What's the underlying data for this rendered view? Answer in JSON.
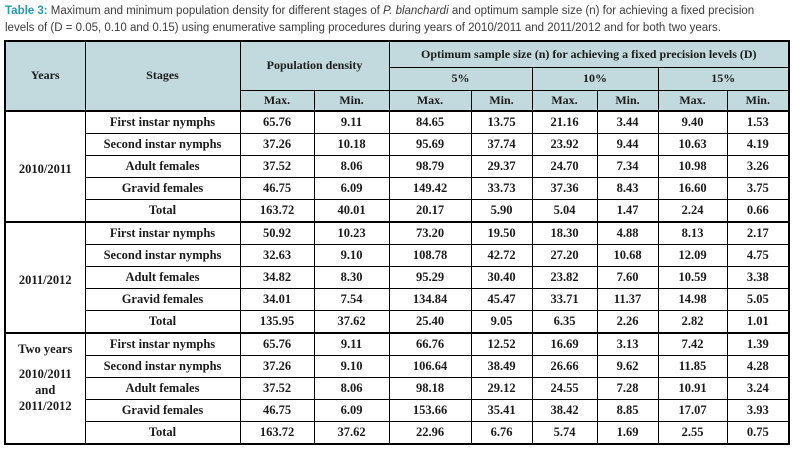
{
  "colors": {
    "accent_teal": "#2a9ab0",
    "header_bg": "#c2dade",
    "border": "#000000",
    "text": "#1b1b1b"
  },
  "caption": {
    "label": "Table 3:",
    "before_italic": " Maximum and minimum population density for different stages of ",
    "species_italic": "P. blanchardi",
    "after_italic": " and optimum sample size (n) for achieving a fixed precision levels of (D = 0.05, 0.10 and 0.15) using enumerative sampling procedures during years of 2010/2011 and 2011/2012 and for both two years."
  },
  "table": {
    "header": {
      "years": "Years",
      "stages": "Stages",
      "population_density": "Population density",
      "optimum_title": "Optimum sample size (n) for achieving a fixed precision levels (D)",
      "precision_levels": [
        "5%",
        "10%",
        "15%"
      ],
      "max_label": "Max.",
      "min_label": "Min."
    },
    "groups": [
      {
        "year_lines": [
          "2010/2011"
        ],
        "rows": [
          {
            "stage": "First instar nymphs",
            "values": [
              "65.76",
              "9.11",
              "84.65",
              "13.75",
              "21.16",
              "3.44",
              "9.40",
              "1.53"
            ]
          },
          {
            "stage": "Second instar nymphs",
            "values": [
              "37.26",
              "10.18",
              "95.69",
              "37.74",
              "23.92",
              "9.44",
              "10.63",
              "4.19"
            ]
          },
          {
            "stage": "Adult females",
            "values": [
              "37.52",
              "8.06",
              "98.79",
              "29.37",
              "24.70",
              "7.34",
              "10.98",
              "3.26"
            ]
          },
          {
            "stage": "Gravid females",
            "values": [
              "46.75",
              "6.09",
              "149.42",
              "33.73",
              "37.36",
              "8.43",
              "16.60",
              "3.75"
            ]
          },
          {
            "stage": "Total",
            "values": [
              "163.72",
              "40.01",
              "20.17",
              "5.90",
              "5.04",
              "1.47",
              "2.24",
              "0.66"
            ]
          }
        ]
      },
      {
        "year_lines": [
          "2011/2012"
        ],
        "rows": [
          {
            "stage": "First instar nymphs",
            "values": [
              "50.92",
              "10.23",
              "73.20",
              "19.50",
              "18.30",
              "4.88",
              "8.13",
              "2.17"
            ]
          },
          {
            "stage": "Second instar nymphs",
            "values": [
              "32.63",
              "9.10",
              "108.78",
              "42.72",
              "27.20",
              "10.68",
              "12.09",
              "4.75"
            ]
          },
          {
            "stage": "Adult females",
            "values": [
              "34.82",
              "8.30",
              "95.29",
              "30.40",
              "23.82",
              "7.60",
              "10.59",
              "3.38"
            ]
          },
          {
            "stage": "Gravid females",
            "values": [
              "34.01",
              "7.54",
              "134.84",
              "45.47",
              "33.71",
              "11.37",
              "14.98",
              "5.05"
            ]
          },
          {
            "stage": "Total",
            "values": [
              "135.95",
              "37.62",
              "25.40",
              "9.05",
              "6.35",
              "2.26",
              "2.82",
              "1.01"
            ]
          }
        ]
      },
      {
        "year_lines": [
          "Two years",
          "2010/2011",
          "and",
          "2011/2012"
        ],
        "rows": [
          {
            "stage": "First instar nymphs",
            "values": [
              "65.76",
              "9.11",
              "66.76",
              "12.52",
              "16.69",
              "3.13",
              "7.42",
              "1.39"
            ]
          },
          {
            "stage": "Second instar nymphs",
            "values": [
              "37.26",
              "9.10",
              "106.64",
              "38.49",
              "26.66",
              "9.62",
              "11.85",
              "4.28"
            ]
          },
          {
            "stage": "Adult females",
            "values": [
              "37.52",
              "8.06",
              "98.18",
              "29.12",
              "24.55",
              "7.28",
              "10.91",
              "3.24"
            ]
          },
          {
            "stage": "Gravid females",
            "values": [
              "46.75",
              "6.09",
              "153.66",
              "35.41",
              "38.42",
              "8.85",
              "17.07",
              "3.93"
            ]
          },
          {
            "stage": "Total",
            "values": [
              "163.72",
              "37.62",
              "22.96",
              "6.76",
              "5.74",
              "1.69",
              "2.55",
              "0.75"
            ]
          }
        ]
      }
    ]
  }
}
